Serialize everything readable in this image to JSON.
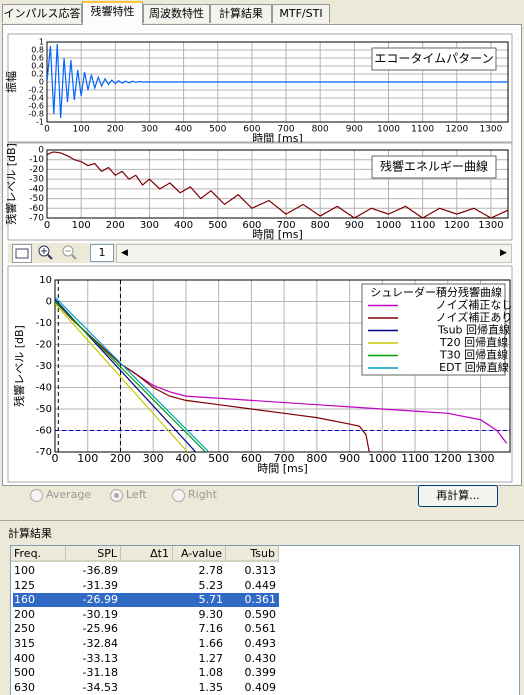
{
  "tabs": [
    "インパルス応答",
    "残響特性",
    "周波数特性",
    "計算結果",
    "MTF/STI"
  ],
  "active_tab": 1,
  "chart_data": [
    {
      "type": "line",
      "title": "エコータイムパターン",
      "ylabel": "振幅",
      "xlabel": "時間 [ms]",
      "color": "#0066ff",
      "grid": true,
      "xlim": [
        0,
        1350
      ],
      "ylim": [
        -1,
        1
      ],
      "xticks": [
        0,
        100,
        200,
        300,
        400,
        500,
        600,
        700,
        800,
        900,
        1000,
        1100,
        1200,
        1300
      ],
      "yticks": [
        1,
        0.8,
        0.6,
        0.4,
        0.2,
        0,
        -0.2,
        -0.4,
        -0.6,
        -0.8,
        -1
      ],
      "x": [
        0,
        10,
        20,
        30,
        40,
        50,
        60,
        70,
        80,
        90,
        100,
        110,
        120,
        130,
        140,
        150,
        160,
        170,
        180,
        190,
        200,
        210,
        220,
        230,
        240,
        250,
        260,
        270,
        280,
        290,
        1350
      ],
      "values": [
        0,
        0.9,
        -0.8,
        0.95,
        -0.9,
        0.6,
        -0.5,
        0.55,
        -0.45,
        0.3,
        -0.35,
        0.25,
        -0.2,
        0.18,
        -0.15,
        0.12,
        -0.1,
        0.08,
        -0.06,
        0.05,
        -0.04,
        0.03,
        -0.03,
        0.02,
        -0.02,
        0.02,
        -0.01,
        0.01,
        0,
        0,
        0
      ]
    },
    {
      "type": "line",
      "title": "残響エネルギー曲線",
      "ylabel": "残響レベル [dB]",
      "xlabel": "時間 [ms]",
      "color": "#800000",
      "grid": true,
      "xlim": [
        0,
        1350
      ],
      "ylim": [
        -70,
        0
      ],
      "xticks": [
        0,
        100,
        200,
        300,
        400,
        500,
        600,
        700,
        800,
        900,
        1000,
        1100,
        1200,
        1300
      ],
      "yticks": [
        0,
        -10,
        -20,
        -30,
        -40,
        -50,
        -60,
        -70
      ],
      "x": [
        0,
        10,
        20,
        40,
        60,
        80,
        100,
        120,
        140,
        160,
        180,
        200,
        220,
        240,
        260,
        280,
        300,
        330,
        360,
        390,
        420,
        450,
        480,
        520,
        560,
        600,
        650,
        700,
        750,
        800,
        850,
        900,
        950,
        1000,
        1050,
        1100,
        1150,
        1200,
        1250,
        1300,
        1350
      ],
      "values": [
        -5,
        -3,
        -2,
        -3,
        -6,
        -10,
        -12,
        -16,
        -14,
        -22,
        -18,
        -26,
        -22,
        -30,
        -26,
        -36,
        -30,
        -40,
        -34,
        -44,
        -38,
        -50,
        -42,
        -56,
        -46,
        -60,
        -52,
        -66,
        -56,
        -68,
        -58,
        -70,
        -60,
        -66,
        -58,
        -70,
        -60,
        -66,
        -60,
        -70,
        -62
      ]
    },
    {
      "type": "line",
      "legend_title": "シュレーダー積分残響曲線",
      "ylabel": "残響レベル [dB]",
      "xlabel": "時間 [ms]",
      "grid": true,
      "xlim": [
        0,
        1390
      ],
      "ylim": [
        -70,
        10
      ],
      "xticks": [
        0,
        100,
        200,
        300,
        400,
        500,
        600,
        700,
        800,
        900,
        1000,
        1100,
        1200,
        1300
      ],
      "yticks": [
        10,
        0,
        -10,
        -20,
        -30,
        -40,
        -50,
        -60,
        -70
      ],
      "cursors": {
        "x": [
          10,
          200
        ],
        "y": [
          -60
        ]
      },
      "series": [
        {
          "name": "ノイズ補正なし",
          "color": "#c000c0",
          "x": [
            0,
            50,
            100,
            150,
            200,
            250,
            300,
            350,
            400,
            500,
            600,
            700,
            800,
            900,
            1000,
            1100,
            1200,
            1300,
            1350,
            1380
          ],
          "values": [
            0,
            -8,
            -15,
            -22,
            -29,
            -34,
            -39,
            -42,
            -44,
            -45,
            -46,
            -47,
            -48,
            -49,
            -50,
            -51,
            -52,
            -55,
            -60,
            -66
          ]
        },
        {
          "name": "ノイズ補正あり",
          "color": "#800000",
          "x": [
            0,
            50,
            100,
            150,
            200,
            250,
            300,
            350,
            400,
            500,
            600,
            700,
            800,
            900,
            930,
            950,
            960
          ],
          "values": [
            0,
            -8,
            -15,
            -22,
            -29,
            -34,
            -40,
            -44,
            -46,
            -48,
            -50,
            -52,
            -54,
            -57,
            -58,
            -62,
            -70
          ]
        },
        {
          "name": "Tsub 回帰直線",
          "color": "#000080",
          "x": [
            0,
            430
          ],
          "values": [
            1,
            -70
          ]
        },
        {
          "name": "T20 回帰直線",
          "color": "#c8c800",
          "x": [
            0,
            405
          ],
          "values": [
            -1,
            -70
          ]
        },
        {
          "name": "T30 回帰直線",
          "color": "#00a000",
          "x": [
            0,
            460
          ],
          "values": [
            0,
            -70
          ]
        },
        {
          "name": "EDT 回帰直線",
          "color": "#00a0c0",
          "x": [
            0,
            470
          ],
          "values": [
            2,
            -70
          ]
        }
      ]
    }
  ],
  "toolbar": {
    "page": "1"
  },
  "radios": {
    "options": [
      "Average",
      "Left",
      "Right"
    ],
    "selected": 1
  },
  "button": "再計算...",
  "results": {
    "title": "計算結果",
    "columns": [
      "Freq.",
      "SPL",
      "Δt1",
      "A-value",
      "Tsub"
    ],
    "selected_row": 2,
    "rows": [
      {
        "freq": "100",
        "spl": "-36.89",
        "a_value": "2.78",
        "tsub": "0.313"
      },
      {
        "freq": "125",
        "spl": "-31.39",
        "a_value": "5.23",
        "tsub": "0.449"
      },
      {
        "freq": "160",
        "spl": "-26.99",
        "a_value": "5.71",
        "tsub": "0.361"
      },
      {
        "freq": "200",
        "spl": "-30.19",
        "a_value": "9.30",
        "tsub": "0.590"
      },
      {
        "freq": "250",
        "spl": "-25.96",
        "a_value": "7.16",
        "tsub": "0.561"
      },
      {
        "freq": "315",
        "spl": "-32.84",
        "a_value": "1.66",
        "tsub": "0.493"
      },
      {
        "freq": "400",
        "spl": "-33.13",
        "a_value": "1.27",
        "tsub": "0.430"
      },
      {
        "freq": "500",
        "spl": "-31.18",
        "a_value": "1.08",
        "tsub": "0.399"
      },
      {
        "freq": "630",
        "spl": "-34.53",
        "a_value": "1.35",
        "tsub": "0.409"
      }
    ]
  }
}
